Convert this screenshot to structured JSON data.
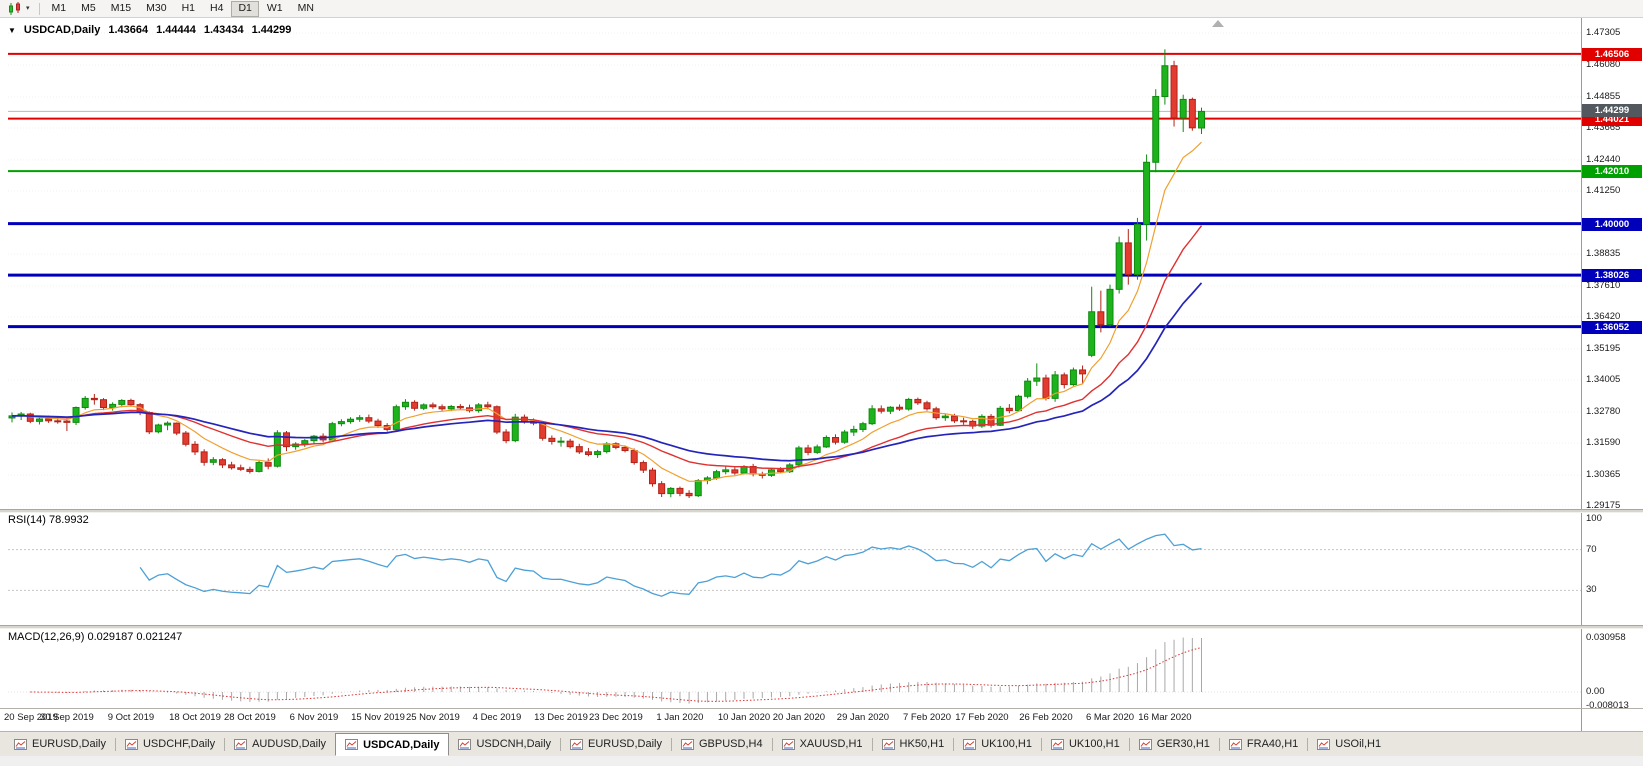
{
  "toolbar": {
    "caret": "▾",
    "timeframes": [
      "M1",
      "M5",
      "M15",
      "M30",
      "H1",
      "H4",
      "D1",
      "W1",
      "MN"
    ],
    "active_timeframe": "D1"
  },
  "chart": {
    "title": {
      "caret": "▼",
      "symbol": "USDCAD,Daily",
      "open": "1.43664",
      "high": "1.44444",
      "low": "1.43434",
      "close": "1.44299"
    },
    "rsi_label": "RSI(14) 78.9932",
    "macd_label": "MACD(12,26,9) 0.029187 0.021247",
    "bid": {
      "value": 1.44299,
      "label": "1.44299"
    },
    "levels": [
      {
        "price": 1.46506,
        "label": "1.46506",
        "color": "#e00000",
        "width": 2
      },
      {
        "price": 1.44021,
        "label": "1.44021",
        "color": "#e00000",
        "width": 2
      },
      {
        "price": 1.4201,
        "label": "1.42010",
        "color": "#00a000",
        "width": 2
      },
      {
        "price": 1.4,
        "label": "1.40000",
        "color": "#0000bb",
        "width": 3
      },
      {
        "price": 1.38026,
        "label": "1.38026",
        "color": "#0000bb",
        "width": 3
      },
      {
        "price": 1.36052,
        "label": "1.36052",
        "color": "#0000bb",
        "width": 3
      }
    ],
    "price_axis": {
      "labels": [
        "1.47305",
        "1.46080",
        "1.44855",
        "1.43665",
        "1.42440",
        "1.41250",
        "1.40025",
        "1.38835",
        "1.37610",
        "1.36420",
        "1.35195",
        "1.34005",
        "1.32780",
        "1.31590",
        "1.30365",
        "1.29175"
      ]
    },
    "rsi_axis": [
      {
        "label": "100",
        "value": 100
      },
      {
        "label": "70",
        "value": 70
      },
      {
        "label": "30",
        "value": 30
      }
    ],
    "macd_axis": [
      {
        "label": "0.030958",
        "value": 0.030958
      },
      {
        "label": "0.00",
        "value": 0
      },
      {
        "label": "-0.008013",
        "value": -0.008013
      }
    ]
  },
  "chart_data": {
    "type": "candlestick",
    "symbol": "USDCAD",
    "timeframe": "Daily",
    "x_labels": [
      "20 Sep 2019",
      "30 Sep 2019",
      "9 Oct 2019",
      "18 Oct 2019",
      "28 Oct 2019",
      "6 Nov 2019",
      "15 Nov 2019",
      "25 Nov 2019",
      "4 Dec 2019",
      "13 Dec 2019",
      "23 Dec 2019",
      "1 Jan 2020",
      "10 Jan 2020",
      "20 Jan 2020",
      "29 Jan 2020",
      "7 Feb 2020",
      "17 Feb 2020",
      "26 Feb 2020",
      "6 Mar 2020",
      "16 Mar 2020"
    ],
    "x_label_indices": [
      0,
      6,
      13,
      20,
      26,
      33,
      40,
      46,
      53,
      60,
      66,
      73,
      80,
      86,
      93,
      100,
      106,
      113,
      120,
      126
    ],
    "indicators": {
      "ma_fast": 8,
      "ma_mid": 20,
      "ma_slow": 34,
      "rsi_period": 14,
      "macd": [
        12,
        26,
        9
      ]
    },
    "candles": [
      [
        1.3255,
        1.3276,
        1.3238,
        1.3263
      ],
      [
        1.3263,
        1.3278,
        1.3247,
        1.327
      ],
      [
        1.327,
        1.3275,
        1.3235,
        1.3242
      ],
      [
        1.3242,
        1.3262,
        1.323,
        1.3251
      ],
      [
        1.3251,
        1.3264,
        1.3236,
        1.3244
      ],
      [
        1.3244,
        1.3258,
        1.3233,
        1.3243
      ],
      [
        1.3243,
        1.3252,
        1.3205,
        1.3238
      ],
      [
        1.3238,
        1.3299,
        1.3228,
        1.3295
      ],
      [
        1.3295,
        1.3339,
        1.3287,
        1.333
      ],
      [
        1.333,
        1.3347,
        1.3306,
        1.3325
      ],
      [
        1.3325,
        1.3331,
        1.3285,
        1.3295
      ],
      [
        1.3295,
        1.3315,
        1.3283,
        1.3307
      ],
      [
        1.3307,
        1.3327,
        1.3296,
        1.3322
      ],
      [
        1.3322,
        1.3329,
        1.3298,
        1.3306
      ],
      [
        1.3306,
        1.3312,
        1.3266,
        1.3276
      ],
      [
        1.3276,
        1.328,
        1.3193,
        1.3202
      ],
      [
        1.3202,
        1.3233,
        1.3196,
        1.3228
      ],
      [
        1.3228,
        1.3242,
        1.3208,
        1.3235
      ],
      [
        1.3235,
        1.3238,
        1.3189,
        1.3197
      ],
      [
        1.3197,
        1.3205,
        1.3146,
        1.3154
      ],
      [
        1.3154,
        1.3166,
        1.3113,
        1.3125
      ],
      [
        1.3125,
        1.3135,
        1.3072,
        1.3085
      ],
      [
        1.3085,
        1.3105,
        1.3074,
        1.3095
      ],
      [
        1.3095,
        1.3101,
        1.3063,
        1.3075
      ],
      [
        1.3075,
        1.3087,
        1.3057,
        1.3064
      ],
      [
        1.3064,
        1.3076,
        1.3052,
        1.3058
      ],
      [
        1.3058,
        1.3068,
        1.3042,
        1.305
      ],
      [
        1.305,
        1.309,
        1.3046,
        1.3084
      ],
      [
        1.3084,
        1.31,
        1.3058,
        1.307
      ],
      [
        1.307,
        1.3208,
        1.3065,
        1.3198
      ],
      [
        1.3198,
        1.3205,
        1.3128,
        1.3145
      ],
      [
        1.3145,
        1.3162,
        1.3133,
        1.3155
      ],
      [
        1.3155,
        1.3174,
        1.3144,
        1.3168
      ],
      [
        1.3168,
        1.319,
        1.3156,
        1.3185
      ],
      [
        1.3185,
        1.3196,
        1.3162,
        1.3171
      ],
      [
        1.3171,
        1.324,
        1.3165,
        1.3233
      ],
      [
        1.3233,
        1.325,
        1.3223,
        1.3241
      ],
      [
        1.3241,
        1.3258,
        1.3233,
        1.325
      ],
      [
        1.325,
        1.3266,
        1.324,
        1.3256
      ],
      [
        1.3256,
        1.3268,
        1.3235,
        1.3243
      ],
      [
        1.3243,
        1.3252,
        1.3217,
        1.3226
      ],
      [
        1.3226,
        1.3235,
        1.3203,
        1.3211
      ],
      [
        1.3211,
        1.3306,
        1.3206,
        1.3298
      ],
      [
        1.3298,
        1.3327,
        1.3286,
        1.3315
      ],
      [
        1.3315,
        1.3323,
        1.3283,
        1.3292
      ],
      [
        1.3292,
        1.3311,
        1.3285,
        1.3305
      ],
      [
        1.3305,
        1.3314,
        1.329,
        1.3298
      ],
      [
        1.3298,
        1.3307,
        1.3282,
        1.329
      ],
      [
        1.329,
        1.3305,
        1.3281,
        1.3299
      ],
      [
        1.3299,
        1.3308,
        1.3287,
        1.3294
      ],
      [
        1.3294,
        1.3306,
        1.3276,
        1.3283
      ],
      [
        1.3283,
        1.3312,
        1.3275,
        1.3305
      ],
      [
        1.3305,
        1.3317,
        1.3288,
        1.3298
      ],
      [
        1.3298,
        1.3303,
        1.3193,
        1.3201
      ],
      [
        1.3201,
        1.3212,
        1.3158,
        1.3168
      ],
      [
        1.3168,
        1.3271,
        1.3162,
        1.3258
      ],
      [
        1.3258,
        1.3268,
        1.3233,
        1.3242
      ],
      [
        1.3242,
        1.3253,
        1.3227,
        1.3235
      ],
      [
        1.3235,
        1.3242,
        1.3168,
        1.3177
      ],
      [
        1.3177,
        1.3188,
        1.3153,
        1.3165
      ],
      [
        1.3165,
        1.3182,
        1.3145,
        1.3166
      ],
      [
        1.3166,
        1.3175,
        1.3138,
        1.3145
      ],
      [
        1.3145,
        1.3156,
        1.3117,
        1.3125
      ],
      [
        1.3125,
        1.314,
        1.3108,
        1.3115
      ],
      [
        1.3115,
        1.3133,
        1.3102,
        1.3126
      ],
      [
        1.3126,
        1.3163,
        1.3119,
        1.3156
      ],
      [
        1.3156,
        1.3162,
        1.3135,
        1.3142
      ],
      [
        1.3142,
        1.315,
        1.3123,
        1.313
      ],
      [
        1.313,
        1.3138,
        1.3076,
        1.3084
      ],
      [
        1.3084,
        1.3092,
        1.3044,
        1.3055
      ],
      [
        1.3055,
        1.3064,
        1.2992,
        1.3003
      ],
      [
        1.3003,
        1.3013,
        1.2952,
        1.2965
      ],
      [
        1.2965,
        1.299,
        1.2951,
        1.2985
      ],
      [
        1.2985,
        1.2992,
        1.2955,
        1.2966
      ],
      [
        1.2966,
        1.2978,
        1.2948,
        1.2957
      ],
      [
        1.2957,
        1.3021,
        1.2952,
        1.3015
      ],
      [
        1.3015,
        1.3032,
        1.3001,
        1.3025
      ],
      [
        1.3025,
        1.3056,
        1.3018,
        1.3049
      ],
      [
        1.3049,
        1.3069,
        1.3039,
        1.3056
      ],
      [
        1.3056,
        1.3066,
        1.3037,
        1.3044
      ],
      [
        1.3044,
        1.3074,
        1.3038,
        1.3069
      ],
      [
        1.3069,
        1.3079,
        1.3031,
        1.304
      ],
      [
        1.304,
        1.3049,
        1.3023,
        1.3035
      ],
      [
        1.3035,
        1.3064,
        1.3029,
        1.3056
      ],
      [
        1.3056,
        1.3066,
        1.3042,
        1.3049
      ],
      [
        1.3049,
        1.3082,
        1.3044,
        1.3075
      ],
      [
        1.3075,
        1.3148,
        1.3065,
        1.314
      ],
      [
        1.314,
        1.3152,
        1.3112,
        1.3123
      ],
      [
        1.3123,
        1.3153,
        1.3117,
        1.3144
      ],
      [
        1.3144,
        1.3188,
        1.314,
        1.318
      ],
      [
        1.318,
        1.3192,
        1.3153,
        1.3162
      ],
      [
        1.3162,
        1.3209,
        1.3156,
        1.3201
      ],
      [
        1.3201,
        1.3225,
        1.3186,
        1.3211
      ],
      [
        1.3211,
        1.324,
        1.3201,
        1.3233
      ],
      [
        1.3233,
        1.3304,
        1.3228,
        1.329
      ],
      [
        1.329,
        1.3303,
        1.3272,
        1.3281
      ],
      [
        1.3281,
        1.33,
        1.327,
        1.3296
      ],
      [
        1.3296,
        1.3307,
        1.3282,
        1.3289
      ],
      [
        1.3289,
        1.3332,
        1.3283,
        1.3326
      ],
      [
        1.3326,
        1.3333,
        1.3305,
        1.3313
      ],
      [
        1.3313,
        1.3321,
        1.3283,
        1.329
      ],
      [
        1.329,
        1.3298,
        1.3248,
        1.3256
      ],
      [
        1.3256,
        1.327,
        1.3244,
        1.3262
      ],
      [
        1.3262,
        1.3271,
        1.3236,
        1.3244
      ],
      [
        1.3244,
        1.3256,
        1.3229,
        1.3242
      ],
      [
        1.3242,
        1.3248,
        1.3213,
        1.3224
      ],
      [
        1.3224,
        1.3269,
        1.3217,
        1.3261
      ],
      [
        1.3261,
        1.327,
        1.3218,
        1.3227
      ],
      [
        1.3227,
        1.3301,
        1.3224,
        1.3292
      ],
      [
        1.3292,
        1.3308,
        1.3273,
        1.3283
      ],
      [
        1.3283,
        1.3344,
        1.3279,
        1.3338
      ],
      [
        1.3338,
        1.3408,
        1.333,
        1.3396
      ],
      [
        1.3396,
        1.3464,
        1.3378,
        1.3408
      ],
      [
        1.3408,
        1.3421,
        1.3322,
        1.333
      ],
      [
        1.333,
        1.3435,
        1.3317,
        1.342
      ],
      [
        1.342,
        1.3429,
        1.3368,
        1.3383
      ],
      [
        1.3383,
        1.3448,
        1.3378,
        1.3439
      ],
      [
        1.3439,
        1.3456,
        1.3387,
        1.3424
      ],
      [
        1.3495,
        1.3758,
        1.3488,
        1.3662
      ],
      [
        1.3662,
        1.3743,
        1.3583,
        1.3613
      ],
      [
        1.3613,
        1.3766,
        1.3606,
        1.3748
      ],
      [
        1.3748,
        1.395,
        1.3732,
        1.3926
      ],
      [
        1.3926,
        1.3979,
        1.3766,
        1.3805
      ],
      [
        1.3805,
        1.4022,
        1.3785,
        1.3997
      ],
      [
        1.3997,
        1.4265,
        1.3935,
        1.4235
      ],
      [
        1.4235,
        1.4515,
        1.4197,
        1.4487
      ],
      [
        1.4487,
        1.4668,
        1.4456,
        1.4605
      ],
      [
        1.4605,
        1.4624,
        1.4372,
        1.4405
      ],
      [
        1.4405,
        1.4494,
        1.4351,
        1.4476
      ],
      [
        1.4476,
        1.4483,
        1.4356,
        1.4367
      ],
      [
        1.43664,
        1.44444,
        1.43434,
        1.44299
      ]
    ]
  },
  "tabs": [
    {
      "label": "EURUSD,Daily"
    },
    {
      "label": "USDCHF,Daily"
    },
    {
      "label": "AUDUSD,Daily"
    },
    {
      "label": "USDCAD,Daily"
    },
    {
      "label": "USDCNH,Daily"
    },
    {
      "label": "EURUSD,Daily"
    },
    {
      "label": "GBPUSD,H4"
    },
    {
      "label": "XAUUSD,H1"
    },
    {
      "label": "HK50,H1"
    },
    {
      "label": "UK100,H1"
    },
    {
      "label": "UK100,H1"
    },
    {
      "label": "GER30,H1"
    },
    {
      "label": "FRA40,H1"
    },
    {
      "label": "USOil,H1"
    }
  ],
  "active_tab_index": 3,
  "colors": {
    "bull": "#1db31d",
    "bull_border": "#0f8a0f",
    "bear": "#e23b2f",
    "bear_border": "#b22318",
    "ma_fast": "#f0a030",
    "ma_mid": "#e03030",
    "ma_slow": "#2424bb",
    "rsi": "#4da0d6",
    "macd_hist": "#a8a8a8",
    "macd_signal": "#e03030"
  }
}
